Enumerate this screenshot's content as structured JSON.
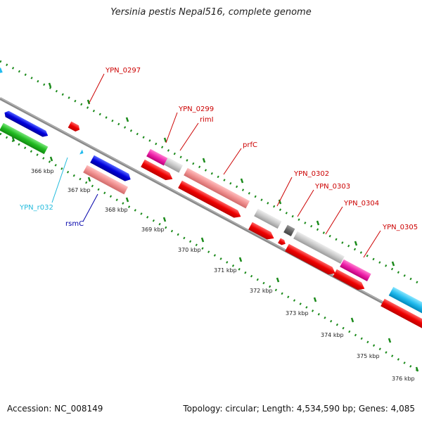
{
  "title": "Yersinia pestis Nepal516, complete genome",
  "footer": {
    "accession": "Accession: NC_008149",
    "summary": "Topology: circular; Length: 4,534,590 bp; Genes: 4,085"
  },
  "colors": {
    "backbone": "#8a8a8a",
    "ruler": "#1a8a1a",
    "label_red": "#cc0000",
    "label_cyan": "#22bbdd",
    "label_blue": "#0000aa"
  },
  "ticks": [
    "366 kbp",
    "367 kbp",
    "368 kbp",
    "369 kbp",
    "370 kbp",
    "371 kbp",
    "372 kbp",
    "373 kbp",
    "374 kbp",
    "375 kbp",
    "376 kbp"
  ],
  "gene_labels": [
    {
      "name": "YPN_0297",
      "color": "red"
    },
    {
      "name": "YPN_0299",
      "color": "red"
    },
    {
      "name": "rimI",
      "color": "red"
    },
    {
      "name": "prfC",
      "color": "red"
    },
    {
      "name": "YPN_0302",
      "color": "red"
    },
    {
      "name": "YPN_0303",
      "color": "red"
    },
    {
      "name": "YPN_0304",
      "color": "red"
    },
    {
      "name": "YPN_0305",
      "color": "red"
    },
    {
      "name": "YPN_r032",
      "color": "cyan"
    },
    {
      "name": "rsmC",
      "color": "blue"
    }
  ]
}
